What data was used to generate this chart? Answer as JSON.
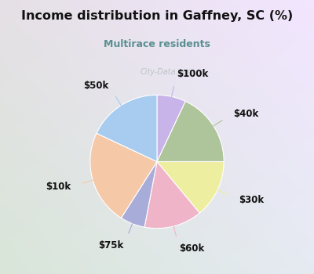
{
  "title": "Income distribution in Gaffney, SC (%)",
  "subtitle": "Multirace residents",
  "title_color": "#111111",
  "subtitle_color": "#5a9090",
  "background_color": "#00ffff",
  "labels": [
    "$100k",
    "$40k",
    "$30k",
    "$60k",
    "$75k",
    "$10k",
    "$50k"
  ],
  "sizes": [
    7,
    18,
    14,
    14,
    6,
    23,
    18
  ],
  "colors": [
    "#c8b4e8",
    "#aec49a",
    "#eeeea0",
    "#f0b4c8",
    "#a8acd8",
    "#f5c8a8",
    "#a8ccf0"
  ],
  "startangle": 90,
  "label_fontsize": 8.5,
  "watermark": "City-Data.com"
}
